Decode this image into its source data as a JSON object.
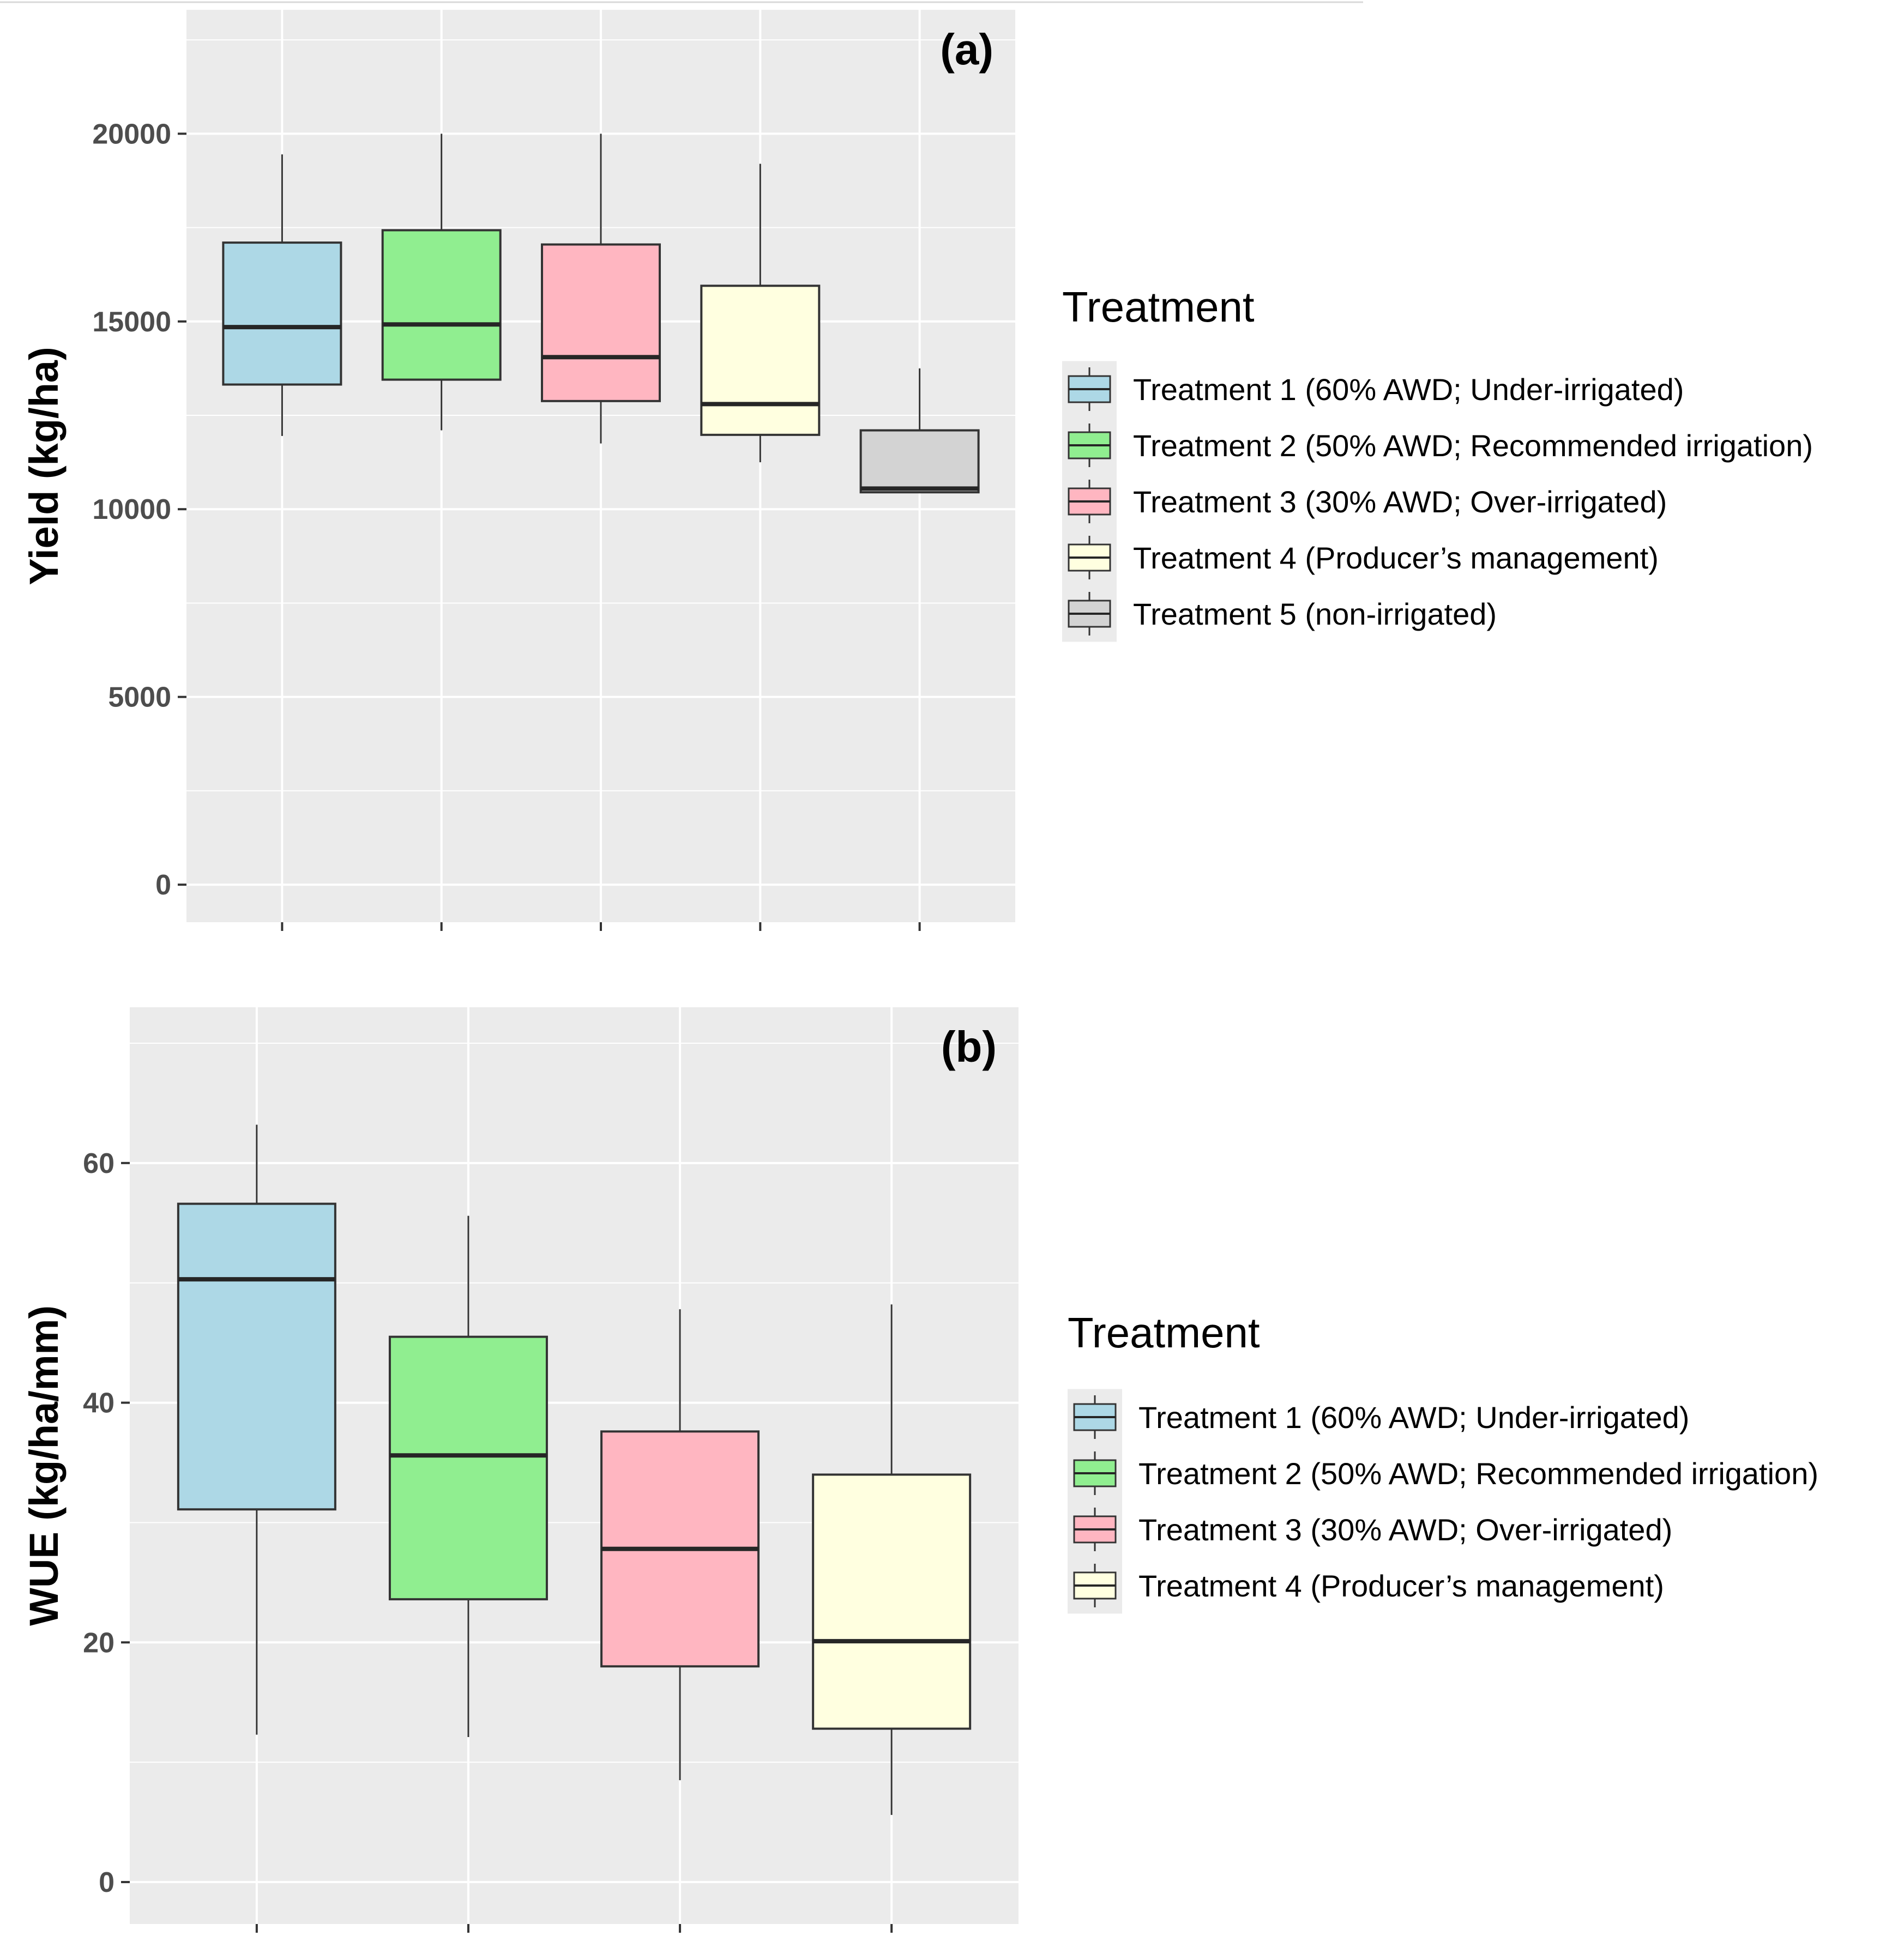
{
  "chart_data": [
    {
      "type": "boxplot",
      "panel_label": "(a)",
      "ylabel": "Yield (kg/ha)",
      "xlabel": "",
      "ylim": [
        -1000,
        23300
      ],
      "yticks": [
        0,
        5000,
        10000,
        15000,
        20000
      ],
      "grid": true,
      "legend_position": "right",
      "legend_title": "Treatment",
      "series": [
        {
          "name": "Treatment 1 (60% AWD; Under-irrigated)",
          "color": "#add8e6",
          "min": 11950,
          "q1": 13320,
          "median": 14850,
          "q3": 17100,
          "max": 19450
        },
        {
          "name": "Treatment 2 (50% AWD; Recommended irrigation)",
          "color": "#90ee90",
          "min": 12100,
          "q1": 13450,
          "median": 14920,
          "q3": 17430,
          "max": 20000
        },
        {
          "name": "Treatment 3 (30% AWD; Over-irrigated)",
          "color": "#ffb6c1",
          "min": 11750,
          "q1": 12880,
          "median": 14050,
          "q3": 17050,
          "max": 20000
        },
        {
          "name": "Treatment 4 (Producer’s management)",
          "color": "#ffffe0",
          "min": 11250,
          "q1": 11980,
          "median": 12800,
          "q3": 15950,
          "max": 19200
        },
        {
          "name": "Treatment 5 (non-irrigated)",
          "color": "#d3d3d3",
          "min": 10450,
          "q1": 10450,
          "median": 10550,
          "q3": 12100,
          "max": 13750
        }
      ]
    },
    {
      "type": "boxplot",
      "panel_label": "(b)",
      "ylabel": "WUE (kg/ha/mm)",
      "xlabel": "",
      "ylim": [
        -3.5,
        73
      ],
      "yticks": [
        0,
        20,
        40,
        60
      ],
      "grid": true,
      "legend_position": "right",
      "legend_title": "Treatment",
      "series": [
        {
          "name": "Treatment 1 (60% AWD; Under-irrigated)",
          "color": "#add8e6",
          "min": 12.3,
          "q1": 31.1,
          "median": 50.3,
          "q3": 56.6,
          "max": 63.2
        },
        {
          "name": "Treatment 2 (50% AWD; Recommended irrigation)",
          "color": "#90ee90",
          "min": 12.1,
          "q1": 23.6,
          "median": 35.6,
          "q3": 45.5,
          "max": 55.6
        },
        {
          "name": "Treatment 3 (30% AWD; Over-irrigated)",
          "color": "#ffb6c1",
          "min": 8.5,
          "q1": 18.0,
          "median": 27.8,
          "q3": 37.6,
          "max": 47.8
        },
        {
          "name": "Treatment 4 (Producer’s management)",
          "color": "#ffffe0",
          "min": 5.6,
          "q1": 12.8,
          "median": 20.1,
          "q3": 34.0,
          "max": 48.2
        }
      ]
    }
  ]
}
